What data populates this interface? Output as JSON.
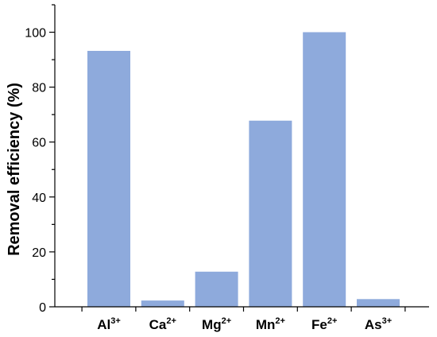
{
  "chart_data": {
    "type": "bar",
    "categories": [
      {
        "base": "Al",
        "sup": "3+"
      },
      {
        "base": "Ca",
        "sup": "2+"
      },
      {
        "base": "Mg",
        "sup": "2+"
      },
      {
        "base": "Mn",
        "sup": "2+"
      },
      {
        "base": "Fe",
        "sup": "2+"
      },
      {
        "base": "As",
        "sup": "3+"
      }
    ],
    "values": [
      93.2,
      2.3,
      12.8,
      67.8,
      100.0,
      2.8
    ],
    "ylabel": "Removal efficiency (%)",
    "xlabel": "",
    "ylim": [
      0,
      110
    ],
    "yticks": [
      0,
      20,
      40,
      60,
      80,
      100
    ],
    "bar_color": "#8eaadc",
    "axis_color": "#000000",
    "grid": false,
    "legend": "none"
  }
}
